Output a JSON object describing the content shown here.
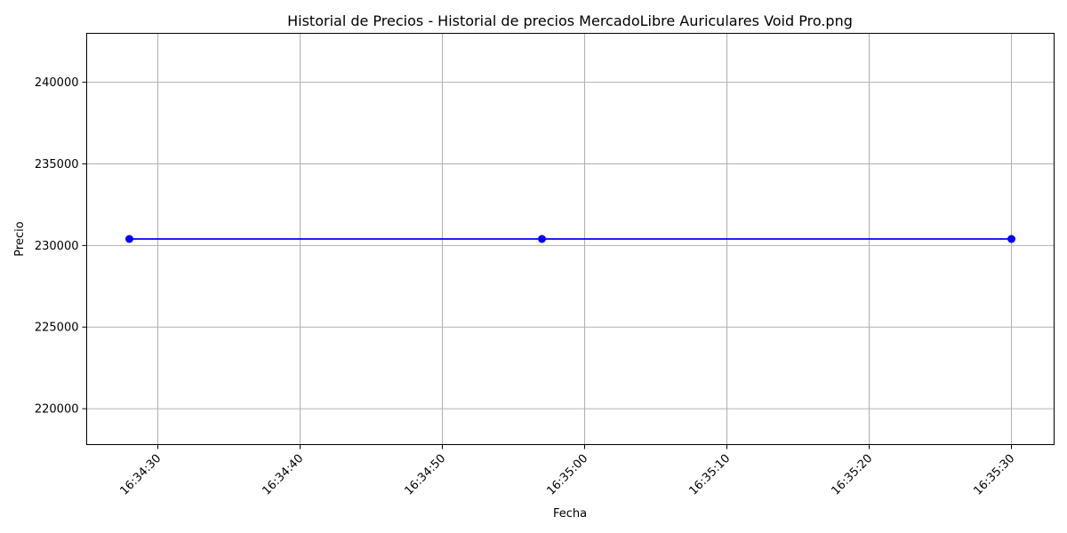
{
  "chart_data": {
    "type": "line",
    "title": "Historial de Precios - Historial de precios MercadoLibre Auriculares Void Pro.png",
    "xlabel": "Fecha",
    "ylabel": "Precio",
    "x_ticks": [
      "16:34:30",
      "16:34:40",
      "16:34:50",
      "16:35:00",
      "16:35:10",
      "16:35:20",
      "16:35:30"
    ],
    "y_ticks": [
      "220000",
      "225000",
      "230000",
      "235000",
      "240000"
    ],
    "xlim": [
      "16:34:25",
      "16:35:33"
    ],
    "ylim": [
      217800,
      243000
    ],
    "grid": true,
    "series": [
      {
        "color": "#0000ff",
        "marker": "circle",
        "x": [
          "16:34:28",
          "16:34:57",
          "16:35:30"
        ],
        "values": [
          230400,
          230400,
          230400
        ]
      }
    ]
  }
}
